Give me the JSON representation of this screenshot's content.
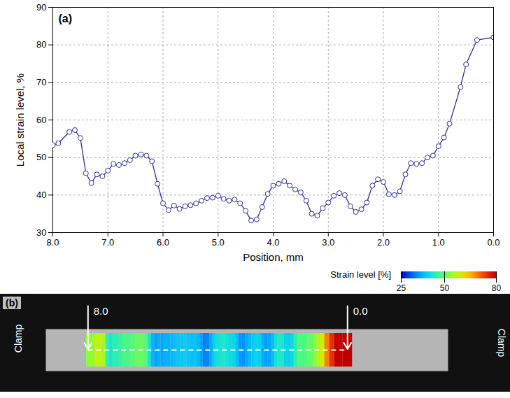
{
  "chart_data": [
    {
      "type": "line",
      "panel_label": "(a)",
      "x_label": "Position, mm",
      "y_label": "Local strain level, %",
      "x": [
        8.0,
        7.9,
        7.7,
        7.6,
        7.5,
        7.4,
        7.3,
        7.2,
        7.1,
        7.0,
        6.9,
        6.8,
        6.7,
        6.6,
        6.5,
        6.4,
        6.3,
        6.2,
        6.1,
        6.0,
        5.9,
        5.8,
        5.7,
        5.6,
        5.5,
        5.4,
        5.3,
        5.2,
        5.1,
        5.0,
        4.9,
        4.8,
        4.7,
        4.6,
        4.5,
        4.4,
        4.3,
        4.2,
        4.1,
        4.0,
        3.9,
        3.8,
        3.7,
        3.6,
        3.5,
        3.4,
        3.3,
        3.2,
        3.1,
        3.0,
        2.9,
        2.8,
        2.7,
        2.6,
        2.5,
        2.4,
        2.3,
        2.2,
        2.1,
        2.0,
        1.9,
        1.8,
        1.7,
        1.6,
        1.5,
        1.4,
        1.3,
        1.2,
        1.1,
        1.0,
        0.9,
        0.8,
        0.6,
        0.5,
        0.3,
        0.0
      ],
      "values": [
        53.3,
        53.8,
        56.8,
        57.3,
        55.2,
        45.8,
        43.2,
        45.5,
        45.0,
        46.5,
        48.3,
        48.0,
        48.5,
        49.3,
        50.5,
        50.8,
        50.5,
        49.0,
        43.0,
        37.8,
        36.0,
        37.2,
        36.3,
        37.0,
        37.3,
        37.8,
        38.5,
        39.2,
        39.3,
        39.8,
        39.0,
        38.5,
        38.8,
        37.8,
        35.8,
        33.2,
        33.5,
        36.8,
        40.3,
        42.5,
        43.0,
        43.7,
        42.5,
        41.5,
        40.7,
        38.5,
        35.0,
        34.5,
        36.5,
        38.0,
        39.8,
        40.5,
        40.0,
        37.0,
        35.5,
        36.2,
        38.0,
        42.5,
        44.2,
        43.5,
        40.2,
        40.0,
        41.0,
        45.5,
        48.5,
        48.3,
        48.5,
        50.0,
        50.5,
        53.0,
        55.3,
        59.0,
        68.8,
        74.8,
        81.3,
        82.0
      ],
      "color": "#2e2e9a",
      "marker": "circle",
      "xlim": [
        8.0,
        0.0
      ],
      "xticks": [
        {
          "value": 8,
          "label": "8.0"
        },
        {
          "value": 7,
          "label": "7.0"
        },
        {
          "value": 6,
          "label": "6.0"
        },
        {
          "value": 5,
          "label": "5.0"
        },
        {
          "value": 4,
          "label": "4.0"
        },
        {
          "value": 3,
          "label": "3.0"
        },
        {
          "value": 2,
          "label": "2.0"
        },
        {
          "value": 1,
          "label": "1.0"
        },
        {
          "value": 0,
          "label": "0.0"
        }
      ],
      "ylim": [
        30,
        90
      ],
      "yticks": [
        30,
        40,
        50,
        60,
        70,
        80,
        90
      ],
      "grid": true
    },
    {
      "type": "strain_map",
      "panel_label": "(b)",
      "side_labels": [
        "Clamp",
        "Clamp"
      ],
      "markers": [
        {
          "value": 8,
          "label": "8.0"
        },
        {
          "value": 0,
          "label": "0.0"
        }
      ],
      "x": [
        8.0,
        7.9,
        7.7,
        7.6,
        7.5,
        7.4,
        7.3,
        7.2,
        7.1,
        7.0,
        6.9,
        6.8,
        6.7,
        6.6,
        6.5,
        6.4,
        6.3,
        6.2,
        6.1,
        6.0,
        5.9,
        5.8,
        5.7,
        5.6,
        5.5,
        5.4,
        5.3,
        5.2,
        5.1,
        5.0,
        4.9,
        4.8,
        4.7,
        4.6,
        4.5,
        4.4,
        4.3,
        4.2,
        4.1,
        4.0,
        3.9,
        3.8,
        3.7,
        3.6,
        3.5,
        3.4,
        3.3,
        3.2,
        3.1,
        3.0,
        2.9,
        2.8,
        2.7,
        2.6,
        2.5,
        2.4,
        2.3,
        2.2,
        2.1,
        2.0,
        1.9,
        1.8,
        1.7,
        1.6,
        1.5,
        1.4,
        1.3,
        1.2,
        1.1,
        1.0,
        0.9,
        0.8,
        0.6,
        0.5,
        0.3,
        0.0
      ],
      "values": [
        53.3,
        53.8,
        56.8,
        57.3,
        55.2,
        45.8,
        43.2,
        45.5,
        45.0,
        46.5,
        48.3,
        48.0,
        48.5,
        49.3,
        50.5,
        50.8,
        50.5,
        49.0,
        43.0,
        37.8,
        36.0,
        37.2,
        36.3,
        37.0,
        37.3,
        37.8,
        38.5,
        39.2,
        39.3,
        39.8,
        39.0,
        38.5,
        38.8,
        37.8,
        35.8,
        33.2,
        33.5,
        36.8,
        40.3,
        42.5,
        43.0,
        43.7,
        42.5,
        41.5,
        40.7,
        38.5,
        35.0,
        34.5,
        36.5,
        38.0,
        39.8,
        40.5,
        40.0,
        37.0,
        35.5,
        36.2,
        38.0,
        42.5,
        44.2,
        43.5,
        40.2,
        40.0,
        41.0,
        45.5,
        48.5,
        48.3,
        48.5,
        50.0,
        50.5,
        53.0,
        55.3,
        59.0,
        68.8,
        74.8,
        81.3,
        82.0
      ],
      "xlim": [
        9.3,
        -3.1
      ],
      "colorbar": {
        "label": "Strain level [%]",
        "range": [
          25,
          80
        ],
        "ticks": [
          25,
          50,
          80
        ]
      }
    }
  ]
}
